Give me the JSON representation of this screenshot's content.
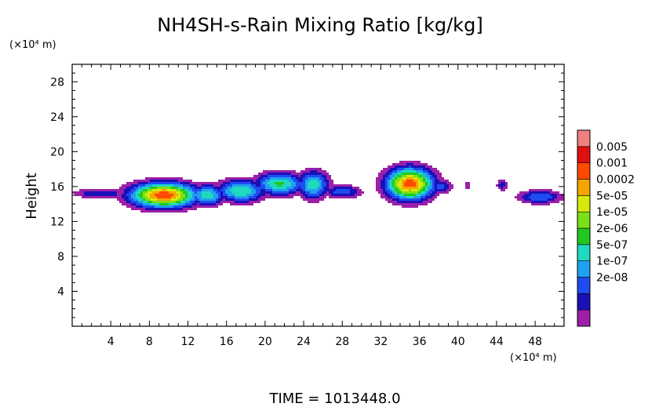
{
  "chart_data": {
    "type": "heatmap",
    "title": "NH4SH-s-Rain Mixing Ratio [kg/kg]",
    "xlabel": "",
    "ylabel": "Height",
    "x_unit": "(×10⁴ m)",
    "y_unit": "(×10⁴ m)",
    "xlim": [
      0,
      51
    ],
    "ylim": [
      0,
      30
    ],
    "x_ticks": [
      4,
      8,
      12,
      16,
      20,
      24,
      28,
      32,
      36,
      40,
      44,
      48
    ],
    "y_ticks": [
      4,
      8,
      12,
      16,
      20,
      24,
      28
    ],
    "colorbar": {
      "labels": [
        "0.005",
        "0.001",
        "0.0002",
        "5e-05",
        "1e-05",
        "2e-06",
        "5e-07",
        "1e-07",
        "2e-08"
      ],
      "colors": [
        "#9c1fa8",
        "#1a10b8",
        "#1f4cf0",
        "#1fa0f0",
        "#1fd9c0",
        "#21c821",
        "#7be017",
        "#d8e80a",
        "#f5a500",
        "#ff4a00",
        "#e01010",
        "#f08080"
      ]
    },
    "blobs": [
      {
        "x": 9.5,
        "y": 15.0,
        "sx": 3.4,
        "sy": 1.4,
        "peak": 11.0
      },
      {
        "x": 14.0,
        "y": 15.0,
        "sx": 1.8,
        "sy": 1.2,
        "peak": 6.0
      },
      {
        "x": 17.5,
        "y": 15.5,
        "sx": 2.5,
        "sy": 1.3,
        "peak": 6.2
      },
      {
        "x": 21.5,
        "y": 16.3,
        "sx": 2.5,
        "sy": 1.3,
        "peak": 6.4
      },
      {
        "x": 25.0,
        "y": 16.2,
        "sx": 1.6,
        "sy": 1.6,
        "peak": 6.0
      },
      {
        "x": 28.0,
        "y": 15.4,
        "sx": 2.0,
        "sy": 0.8,
        "peak": 3.8
      },
      {
        "x": 35.0,
        "y": 16.3,
        "sx": 2.4,
        "sy": 1.8,
        "peak": 10.8
      },
      {
        "x": 38.2,
        "y": 16.0,
        "sx": 1.2,
        "sy": 0.8,
        "peak": 3.6
      },
      {
        "x": 41.0,
        "y": 16.1,
        "sx": 0.4,
        "sy": 0.6,
        "peak": 2.3
      },
      {
        "x": 44.6,
        "y": 16.2,
        "sx": 0.6,
        "sy": 0.7,
        "peak": 3.0
      },
      {
        "x": 48.5,
        "y": 14.8,
        "sx": 2.3,
        "sy": 0.8,
        "peak": 4.2
      },
      {
        "x": 3.0,
        "y": 15.2,
        "sx": 3.0,
        "sy": 0.6,
        "peak": 3.2
      }
    ],
    "time_label": "TIME = 1013448.0"
  }
}
